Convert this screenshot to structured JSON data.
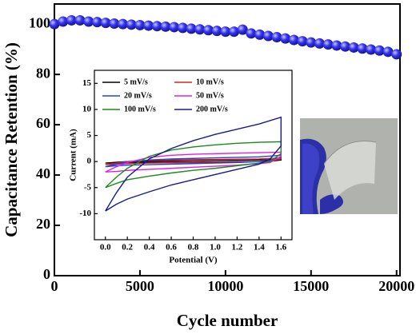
{
  "chart_data": [
    {
      "type": "scatter",
      "xlabel": "Cycle number",
      "ylabel": "Capacitance Retention (%)",
      "x": [
        0,
        500,
        1000,
        1500,
        2000,
        2500,
        3000,
        3500,
        4000,
        4500,
        5000,
        5500,
        6000,
        6500,
        7000,
        7500,
        8000,
        8500,
        9000,
        9500,
        10000,
        10500,
        11000,
        11500,
        12000,
        12500,
        13000,
        13500,
        14000,
        14500,
        15000,
        15500,
        16000,
        16500,
        17000,
        17500,
        18000,
        18500,
        19000,
        19500,
        20000
      ],
      "values": [
        100,
        101,
        101.5,
        101.5,
        101,
        100.8,
        100.5,
        100.2,
        100,
        99.8,
        99.6,
        99.4,
        99.2,
        99,
        98.8,
        98.5,
        98.2,
        97.9,
        97.6,
        97.3,
        97,
        97,
        97.8,
        96.3,
        95.8,
        95.3,
        94.8,
        94.3,
        93.7,
        93.2,
        92.7,
        92.3,
        91.9,
        91.5,
        91.1,
        90.7,
        90.3,
        89.9,
        89.5,
        89,
        88
      ],
      "color": "#2a2ae0",
      "xlim": [
        0,
        20200
      ],
      "xticks": [
        0,
        5000,
        10000,
        15000,
        20000
      ],
      "ylim": [
        0,
        108
      ],
      "yticks": [
        0,
        20,
        40,
        60,
        80,
        100
      ]
    },
    {
      "type": "line",
      "xlabel": "Potential (V)",
      "ylabel": "Current (mA)",
      "x": [
        0,
        0.1,
        0.2,
        0.4,
        0.6,
        0.8,
        1.0,
        1.2,
        1.4,
        1.6,
        1.6,
        1.5,
        1.4,
        1.2,
        1.0,
        0.8,
        0.6,
        0.4,
        0.2,
        0.1,
        0
      ],
      "series": [
        {
          "name": "5 mV/s",
          "color": "#000000",
          "values": [
            -0.3,
            -0.15,
            0,
            0.1,
            0.15,
            0.2,
            0.22,
            0.25,
            0.3,
            0.4,
            0.3,
            0.05,
            0,
            -0.05,
            -0.08,
            -0.1,
            -0.13,
            -0.15,
            -0.2,
            -0.25,
            -0.3
          ]
        },
        {
          "name": "10 mV/s",
          "color": "#e02020",
          "values": [
            -0.6,
            -0.3,
            0,
            0.2,
            0.3,
            0.35,
            0.4,
            0.45,
            0.5,
            0.7,
            0.5,
            0.1,
            0,
            -0.1,
            -0.15,
            -0.2,
            -0.25,
            -0.3,
            -0.4,
            -0.5,
            -0.6
          ]
        },
        {
          "name": "20 mV/s",
          "color": "#2040e0",
          "values": [
            -1,
            -0.5,
            -0.1,
            0.3,
            0.5,
            0.6,
            0.7,
            0.8,
            0.9,
            1.2,
            0.8,
            0.2,
            0,
            -0.2,
            -0.3,
            -0.4,
            -0.5,
            -0.6,
            -0.7,
            -0.8,
            -1
          ]
        },
        {
          "name": "50 mV/s",
          "color": "#e020e0",
          "values": [
            -2,
            -1,
            -0.2,
            0.8,
            1.2,
            1.4,
            1.5,
            1.6,
            1.7,
            1.8,
            1,
            -0.2,
            -0.4,
            -0.7,
            -0.9,
            -1.1,
            -1.3,
            -1.5,
            -1.7,
            -1.9,
            -2
          ]
        },
        {
          "name": "100 mV/s",
          "color": "#1a8a1a",
          "values": [
            -5,
            -3,
            -1.3,
            1,
            2.2,
            2.8,
            3.2,
            3.5,
            3.7,
            3.8,
            1.5,
            0,
            -0.3,
            -0.8,
            -1.3,
            -1.7,
            -2.2,
            -2.8,
            -3.5,
            -4.2,
            -5
          ]
        },
        {
          "name": "200 mV/s",
          "color": "#1a1a8c",
          "values": [
            -9.5,
            -6,
            -3,
            0.5,
            2.5,
            4,
            5.2,
            6.2,
            7.2,
            8.5,
            3,
            0.5,
            -0.5,
            -1.5,
            -2.5,
            -3.5,
            -4.5,
            -5.8,
            -7.2,
            -8.2,
            -9.5
          ]
        }
      ],
      "xlim": [
        -0.1,
        1.7
      ],
      "xticks": [
        {
          "value": 0,
          "label": "0.0"
        },
        0.2,
        0.4,
        0.6,
        0.8,
        {
          "value": 1,
          "label": "1.0"
        },
        1.2,
        1.4,
        1.6
      ],
      "ylim": [
        -15,
        17.5
      ],
      "yticks": [
        -10,
        -5,
        0,
        5,
        10,
        15
      ]
    }
  ]
}
